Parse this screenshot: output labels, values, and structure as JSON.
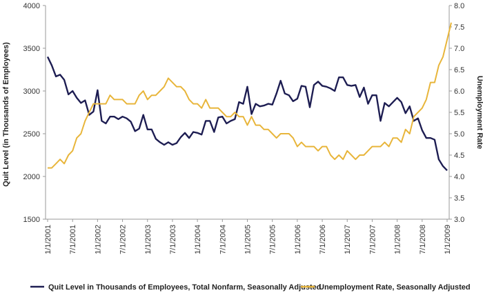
{
  "chart_data": {
    "type": "line",
    "x_tick_labels": [
      "1/1/2001",
      "7/1/2001",
      "1/1/2002",
      "7/1/2002",
      "1/1/2003",
      "7/1/2003",
      "1/1/2004",
      "7/1/2004",
      "1/1/2005",
      "7/1/2005",
      "1/1/2006",
      "7/1/2006",
      "1/1/2007",
      "7/1/2007",
      "1/1/2008",
      "7/1/2008",
      "1/1/2009"
    ],
    "x_range": [
      "2001-01",
      "2009-03"
    ],
    "y_left": {
      "label": "Quit Level (in Thousands of Employees)",
      "ylim": [
        1500,
        4000
      ],
      "ticks": [
        "1500",
        "2000",
        "2500",
        "3000",
        "3500",
        "4000"
      ]
    },
    "y_right": {
      "label": "Unemployment Rate",
      "ylim": [
        3.0,
        8.0
      ],
      "ticks": [
        "3.0",
        "3.5",
        "4.0",
        "4.5",
        "5.0",
        "5.5",
        "6.0",
        "6.5",
        "7.0",
        "7.5",
        "8.0"
      ]
    },
    "grid": false,
    "legend_position": "bottom",
    "colors": {
      "quits": "#1d1d52",
      "unemployment": "#e8b53a",
      "axis": "#999999"
    },
    "series": [
      {
        "name": "Quit Level in Thousands of Employees, Total Nonfarm, Seasonally Adjusted",
        "axis": "left",
        "start": "2001-01",
        "values": [
          3400,
          3300,
          3170,
          3190,
          3130,
          2960,
          3000,
          2920,
          2860,
          2890,
          2720,
          2760,
          3010,
          2650,
          2620,
          2700,
          2700,
          2670,
          2700,
          2680,
          2640,
          2530,
          2560,
          2720,
          2550,
          2550,
          2440,
          2400,
          2370,
          2400,
          2370,
          2390,
          2460,
          2510,
          2450,
          2520,
          2510,
          2490,
          2650,
          2650,
          2520,
          2690,
          2700,
          2620,
          2650,
          2670,
          2870,
          2850,
          3050,
          2730,
          2850,
          2820,
          2830,
          2850,
          2840,
          2970,
          3120,
          2970,
          2950,
          2880,
          2910,
          3060,
          3050,
          2810,
          3070,
          3110,
          3060,
          3050,
          3030,
          3000,
          3160,
          3160,
          3070,
          3060,
          3070,
          2930,
          3040,
          2850,
          2950,
          2950,
          2650,
          2860,
          2820,
          2870,
          2920,
          2870,
          2740,
          2820,
          2650,
          2680,
          2540,
          2450,
          2450,
          2430,
          2200,
          2120,
          2070
        ]
      },
      {
        "name": "Unemployment Rate, Seasonally Adjusted",
        "axis": "right",
        "start": "2001-01",
        "values": [
          4.2,
          4.2,
          4.3,
          4.4,
          4.3,
          4.5,
          4.6,
          4.9,
          5.0,
          5.3,
          5.5,
          5.7,
          5.7,
          5.7,
          5.7,
          5.9,
          5.8,
          5.8,
          5.8,
          5.7,
          5.7,
          5.7,
          5.9,
          6.0,
          5.8,
          5.9,
          5.9,
          6.0,
          6.1,
          6.3,
          6.2,
          6.1,
          6.1,
          6.0,
          5.8,
          5.7,
          5.7,
          5.6,
          5.8,
          5.6,
          5.6,
          5.6,
          5.5,
          5.4,
          5.4,
          5.5,
          5.4,
          5.4,
          5.2,
          5.4,
          5.2,
          5.2,
          5.1,
          5.1,
          5.0,
          4.9,
          5.0,
          5.0,
          5.0,
          4.9,
          4.7,
          4.8,
          4.7,
          4.7,
          4.7,
          4.6,
          4.7,
          4.7,
          4.5,
          4.4,
          4.5,
          4.4,
          4.6,
          4.5,
          4.4,
          4.5,
          4.5,
          4.6,
          4.7,
          4.7,
          4.7,
          4.8,
          4.7,
          4.9,
          4.9,
          4.8,
          5.1,
          5.0,
          5.4,
          5.5,
          5.6,
          5.8,
          6.2,
          6.2,
          6.6,
          6.8,
          7.2,
          7.6
        ]
      }
    ]
  }
}
